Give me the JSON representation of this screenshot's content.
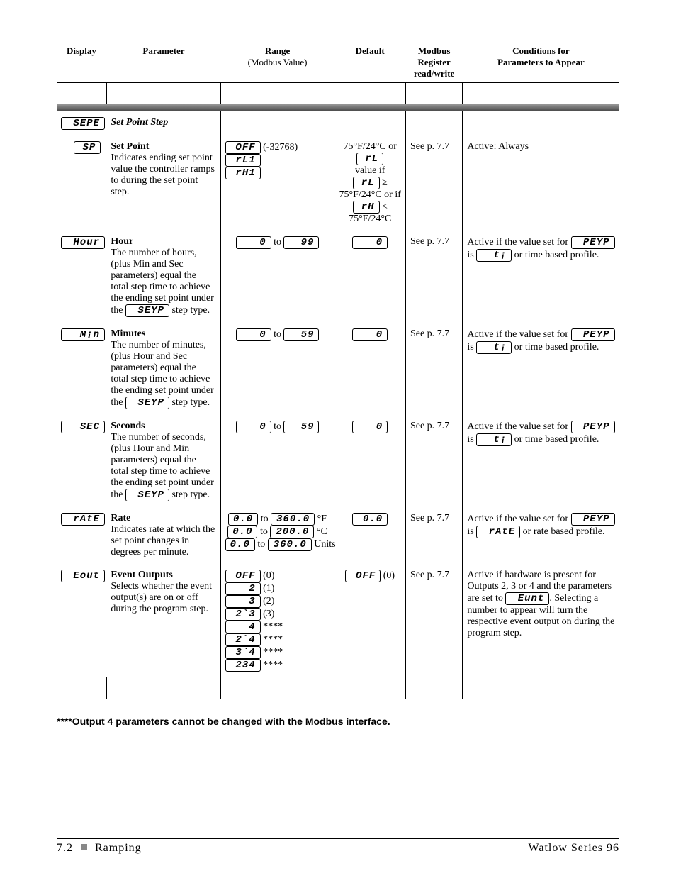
{
  "headers": {
    "display": "Display",
    "parameter": "Parameter",
    "range": "Range",
    "range_sub": "(Modbus Value)",
    "default": "Default",
    "modbus": "Modbus\nRegister\nread/write",
    "conditions": "Conditions for",
    "conditions_sub": "Parameters to Appear"
  },
  "section": {
    "code": "SEPE",
    "title": "Set Point Step"
  },
  "rows": {
    "sp": {
      "code": "SP",
      "title": "Set Point",
      "desc": "Indicates ending set point value the controller ramps to during the set point step.",
      "range_a": "OFF",
      "range_a_note": "(-32768)",
      "range_b": "rL1",
      "range_c": "rH1",
      "default_a": "75°F/24°C or",
      "default_b": "rL",
      "default_c": "value if",
      "default_d": "rL",
      "default_e": "≥ 75°F/24°C or if",
      "default_f": "rH",
      "default_g": "≤ 75°F/24°C",
      "modbus": "See p. 7.7",
      "cond": "Active:  Always"
    },
    "hour": {
      "code": "Hour",
      "title": "Hour",
      "desc": "The number of hours, (plus Min and Sec parameters) equal the total step time to achieve the ending set point under the ",
      "desc_code": "SEYP",
      "desc_tail": " step type.",
      "range_lo": "0",
      "range_hi": "99",
      "default": "0",
      "modbus": "See p. 7.7",
      "cond_pre": "Active if the value set for ",
      "cond_code": "PEYP",
      "cond_mid": " is ",
      "cond_code2": "t¡",
      "cond_tail": " or time based profile."
    },
    "min": {
      "code": "M¡n",
      "title": "Minutes",
      "desc": "The number of minutes, (plus Hour and Sec parameters) equal the total step time to achieve the ending set point under the ",
      "desc_code": "SEYP",
      "desc_tail": " step type.",
      "range_lo": "0",
      "range_hi": "59",
      "default": "0",
      "modbus": "See p. 7.7",
      "cond_pre": "Active if the value set for ",
      "cond_code": "PEYP",
      "cond_mid": " is ",
      "cond_code2": "t¡",
      "cond_tail": " or time based profile."
    },
    "sec": {
      "code": "SEC",
      "title": "Seconds",
      "desc": "The number of seconds, (plus Hour and Min parameters) equal the total step time to achieve the ending set point under the ",
      "desc_code": "SEYP",
      "desc_tail": " step type.",
      "range_lo": "0",
      "range_hi": "59",
      "default": "0",
      "modbus": "See p. 7.7",
      "cond_pre": "Active if the value set for ",
      "cond_code": "PEYP",
      "cond_mid": " is ",
      "cond_code2": "t¡",
      "cond_tail": " or time based profile."
    },
    "rate": {
      "code": "rAtE",
      "title": "Rate",
      "desc": "Indicates rate at which the set point changes in degrees per minute.",
      "r1_lo": "0.0",
      "r1_hi": "360.0",
      "r1_unit": "°F",
      "r2_lo": "0.0",
      "r2_hi": "200.0",
      "r2_unit": "°C",
      "r3_lo": "0.0",
      "r3_hi": "360.0",
      "r3_unit": "Units",
      "default": "0.0",
      "modbus": "See p. 7.7",
      "cond_pre": "Active if the value set for ",
      "cond_code": "PEYP",
      "cond_mid": " is ",
      "cond_code2": "rAtE",
      "cond_tail": " or rate based profile."
    },
    "eout": {
      "code": "Eout",
      "title": "Event Outputs",
      "desc": "Selects whether the event output(s) are on or off during the program step.",
      "opts": [
        {
          "seg": "OFF",
          "note": "(0)"
        },
        {
          "seg": "2",
          "note": "(1)"
        },
        {
          "seg": "3",
          "note": "(2)"
        },
        {
          "seg": "2`3",
          "note": "(3)"
        },
        {
          "seg": "4",
          "note": "****"
        },
        {
          "seg": "2`4",
          "note": "****"
        },
        {
          "seg": "3`4",
          "note": "****"
        },
        {
          "seg": "234",
          "note": "****"
        }
      ],
      "default_seg": "OFF",
      "default_note": "(0)",
      "modbus": "See p. 7.7",
      "cond": "Active if hardware is present for Outputs 2, 3 or 4 and the parameters are set to ",
      "cond_code": "Eunt",
      "cond_tail": ". Selecting a number to appear will turn the respective event output on during the program step."
    }
  },
  "footnote": "****Output 4 parameters cannot be changed with the Modbus interface.",
  "footer": {
    "page": "7.2",
    "section": "Ramping",
    "product": "Watlow Series 96"
  }
}
